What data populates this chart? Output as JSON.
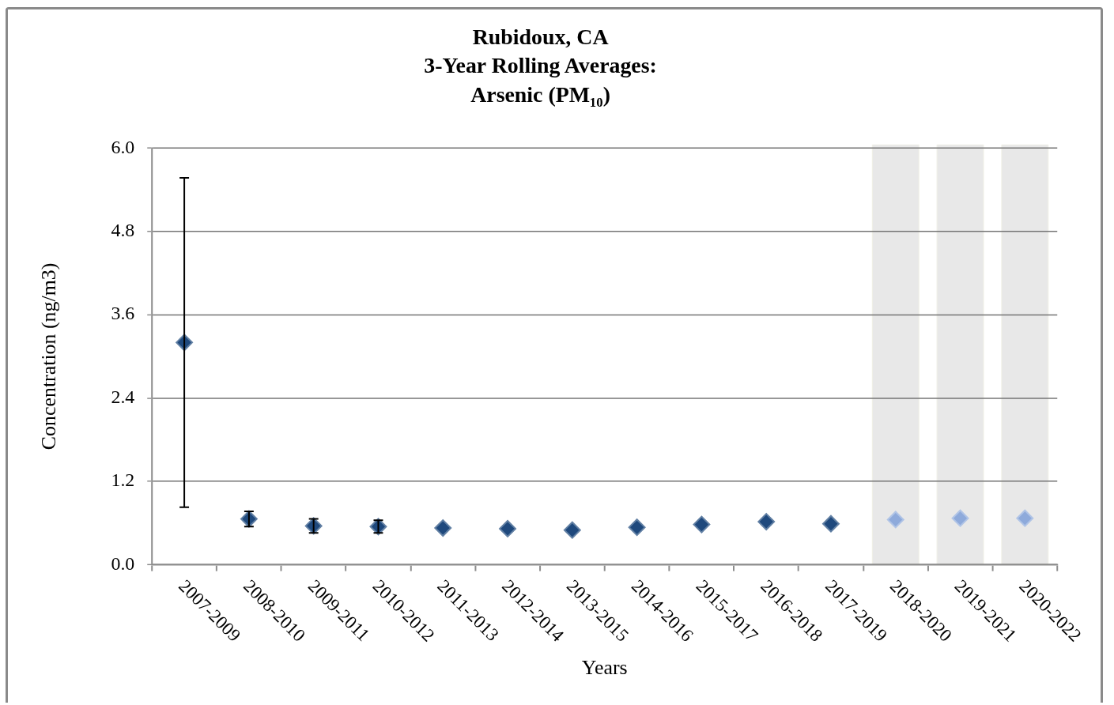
{
  "chart_data": {
    "type": "scatter",
    "title": "Rubidoux, CA\n3-Year Rolling Averages:\nArsenic (PM₁₀)",
    "xlabel": "Years",
    "ylabel": "Concentration (ng/m3)",
    "categories": [
      "2007-2009",
      "2008-2010",
      "2009-2011",
      "2010-2012",
      "2011-2013",
      "2012-2014",
      "2013-2015",
      "2014-2016",
      "2015-2017",
      "2016-2018",
      "2017-2019",
      "2018-2020",
      "2019-2021",
      "2020-2022"
    ],
    "values": [
      3.2,
      0.66,
      0.56,
      0.55,
      0.53,
      0.52,
      0.5,
      0.54,
      0.58,
      0.62,
      0.59,
      0.65,
      0.67,
      0.67
    ],
    "colors": [
      "#1f497d",
      "#1f497d",
      "#1f497d",
      "#1f497d",
      "#1f497d",
      "#1f497d",
      "#1f497d",
      "#1f497d",
      "#1f497d",
      "#1f497d",
      "#1f497d",
      "#8eaadb",
      "#8eaadb",
      "#8eaadb"
    ],
    "errors": [
      2.37,
      0.11,
      0.1,
      0.09,
      null,
      null,
      null,
      null,
      null,
      null,
      null,
      null,
      null,
      null
    ],
    "ylim": [
      0,
      6
    ],
    "yticks": [
      {
        "value": 0,
        "label": "0.0"
      },
      1.2,
      2.4,
      3.6,
      4.8,
      {
        "value": 6,
        "label": "6.0"
      }
    ],
    "grid": "y",
    "marker": "diamond",
    "bands": [
      {
        "axis": "x",
        "from": "2018-2020",
        "to": "2018-2020",
        "color": "#e8e8e8"
      },
      {
        "axis": "x",
        "from": "2019-2021",
        "to": "2019-2021",
        "color": "#e8e8e8"
      },
      {
        "axis": "x",
        "from": "2020-2022",
        "to": "2020-2022",
        "color": "#e8e8e8"
      }
    ]
  }
}
